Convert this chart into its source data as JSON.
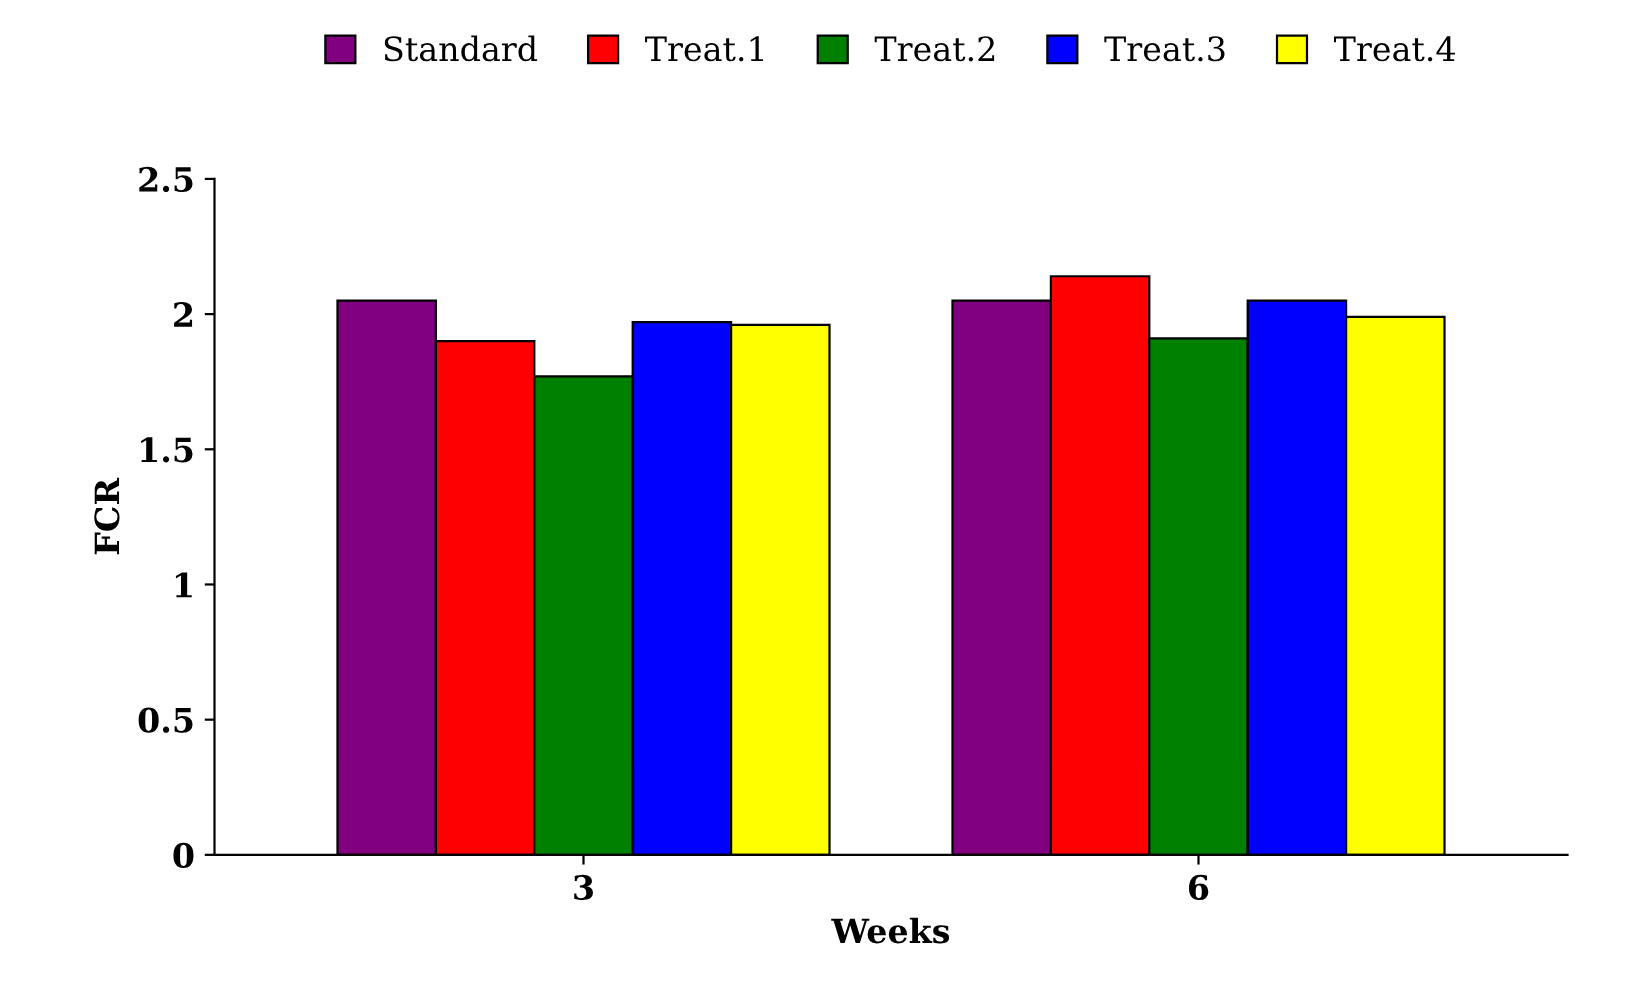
{
  "chart_data": {
    "type": "bar",
    "xlabel": "Weeks",
    "ylabel": "FCR",
    "categories": [
      "3",
      "6"
    ],
    "series": [
      {
        "name": "Standard",
        "color": "#800080",
        "values": [
          2.05,
          2.05
        ]
      },
      {
        "name": "Treat.1",
        "color": "#ff0000",
        "values": [
          1.9,
          2.14
        ]
      },
      {
        "name": "Treat.2",
        "color": "#008000",
        "values": [
          1.77,
          1.91
        ]
      },
      {
        "name": "Treat.3",
        "color": "#0000ff",
        "values": [
          1.97,
          2.05
        ]
      },
      {
        "name": "Treat.4",
        "color": "#ffff00",
        "values": [
          1.96,
          1.99
        ]
      }
    ],
    "ylim": [
      0,
      2.5
    ],
    "yticks": [
      0,
      0.5,
      1,
      1.5,
      2,
      2.5
    ],
    "grid": false,
    "legend": "top"
  }
}
